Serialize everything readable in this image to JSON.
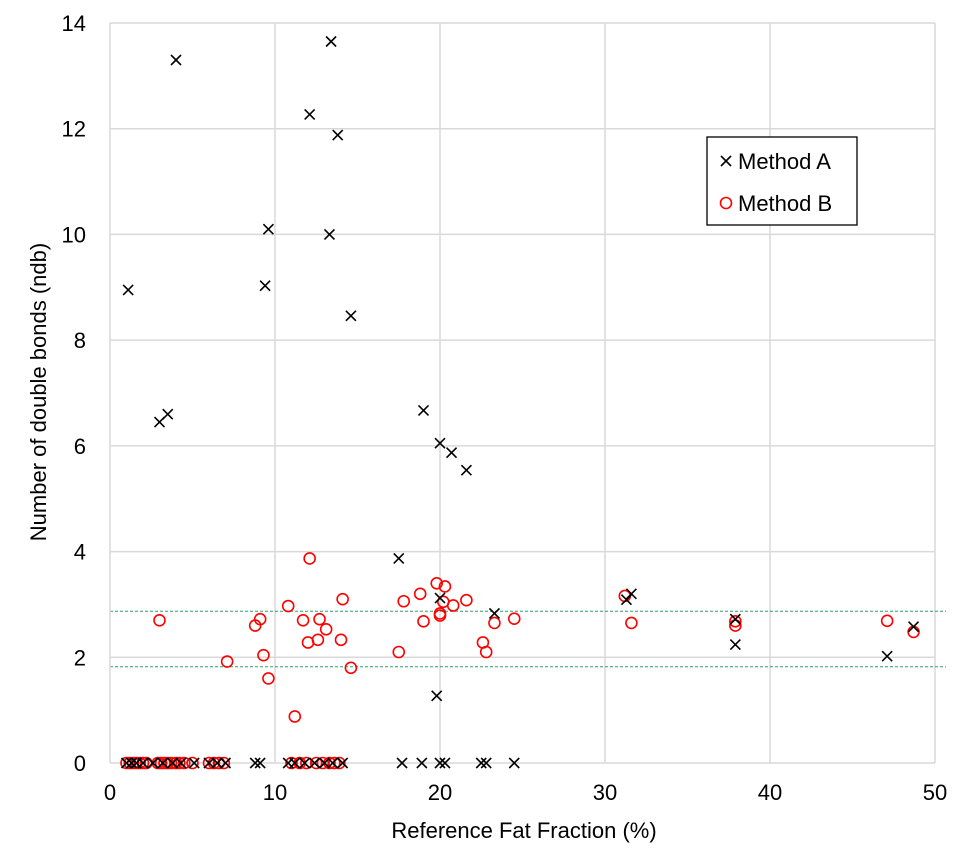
{
  "chart_data": {
    "type": "scatter",
    "xlabel": "Reference Fat Fraction (%)",
    "ylabel": "Number of double bonds (ndb)",
    "xlim": [
      0,
      50
    ],
    "ylim": [
      0,
      14
    ],
    "xticks": [
      0,
      10,
      20,
      30,
      40,
      50
    ],
    "yticks": [
      0,
      2,
      4,
      6,
      8,
      10,
      12,
      14
    ],
    "grid": true,
    "legend_position": "top-right",
    "reference_lines": [
      {
        "y": 2.87,
        "color": "#2e9e6b",
        "style": "dashed"
      },
      {
        "y": 1.82,
        "color": "#2e9e6b",
        "style": "dashed"
      }
    ],
    "series": [
      {
        "name": "Method A",
        "marker": "x",
        "color": "#000000",
        "points": [
          [
            1.1,
            8.95
          ],
          [
            4.0,
            13.3
          ],
          [
            3.0,
            6.45
          ],
          [
            3.5,
            6.6
          ],
          [
            9.4,
            9.03
          ],
          [
            9.6,
            10.1
          ],
          [
            12.1,
            12.27
          ],
          [
            13.4,
            13.65
          ],
          [
            13.3,
            10.0
          ],
          [
            13.8,
            11.88
          ],
          [
            14.6,
            8.46
          ],
          [
            17.5,
            3.87
          ],
          [
            19.0,
            6.67
          ],
          [
            19.8,
            1.27
          ],
          [
            20.0,
            3.12
          ],
          [
            20.0,
            6.05
          ],
          [
            20.7,
            5.87
          ],
          [
            21.6,
            5.54
          ],
          [
            23.3,
            2.83
          ],
          [
            31.3,
            3.09
          ],
          [
            31.6,
            3.2
          ],
          [
            37.9,
            2.24
          ],
          [
            37.9,
            2.72
          ],
          [
            47.1,
            2.02
          ],
          [
            48.7,
            2.58
          ],
          [
            1.0,
            0
          ],
          [
            1.3,
            0
          ],
          [
            1.6,
            0
          ],
          [
            2.0,
            0
          ],
          [
            2.6,
            0
          ],
          [
            3.2,
            0
          ],
          [
            3.8,
            0
          ],
          [
            4.3,
            0
          ],
          [
            5.1,
            0
          ],
          [
            6.0,
            0
          ],
          [
            6.5,
            0
          ],
          [
            7.0,
            0
          ],
          [
            8.8,
            0
          ],
          [
            9.1,
            0
          ],
          [
            10.8,
            0
          ],
          [
            11.2,
            0
          ],
          [
            11.8,
            0
          ],
          [
            12.4,
            0
          ],
          [
            13.0,
            0
          ],
          [
            13.5,
            0
          ],
          [
            14.1,
            0
          ],
          [
            17.7,
            0
          ],
          [
            18.9,
            0
          ],
          [
            20.0,
            0
          ],
          [
            20.3,
            0
          ],
          [
            22.5,
            0
          ],
          [
            22.8,
            0
          ],
          [
            24.5,
            0
          ]
        ]
      },
      {
        "name": "Method B",
        "marker": "o",
        "color": "#ff0000",
        "points": [
          [
            3.0,
            2.7
          ],
          [
            7.1,
            1.92
          ],
          [
            8.8,
            2.6
          ],
          [
            9.1,
            2.72
          ],
          [
            9.3,
            2.04
          ],
          [
            9.6,
            1.6
          ],
          [
            10.8,
            2.97
          ],
          [
            11.2,
            0.88
          ],
          [
            11.7,
            2.7
          ],
          [
            12.0,
            2.28
          ],
          [
            12.1,
            3.87
          ],
          [
            12.6,
            2.33
          ],
          [
            12.7,
            2.72
          ],
          [
            13.1,
            2.53
          ],
          [
            14.0,
            2.33
          ],
          [
            14.1,
            3.1
          ],
          [
            14.6,
            1.8
          ],
          [
            17.5,
            2.1
          ],
          [
            17.8,
            3.06
          ],
          [
            18.8,
            3.2
          ],
          [
            19.0,
            2.68
          ],
          [
            19.8,
            3.4
          ],
          [
            20.0,
            2.79
          ],
          [
            20.0,
            2.83
          ],
          [
            20.2,
            3.05
          ],
          [
            20.3,
            3.34
          ],
          [
            20.8,
            2.98
          ],
          [
            21.6,
            3.08
          ],
          [
            22.6,
            2.28
          ],
          [
            22.8,
            2.1
          ],
          [
            23.3,
            2.65
          ],
          [
            24.5,
            2.73
          ],
          [
            31.2,
            3.16
          ],
          [
            31.6,
            2.65
          ],
          [
            37.9,
            2.6
          ],
          [
            37.9,
            2.68
          ],
          [
            47.1,
            2.69
          ],
          [
            48.7,
            2.48
          ],
          [
            1.0,
            0
          ],
          [
            1.2,
            0
          ],
          [
            1.4,
            0
          ],
          [
            1.6,
            0
          ],
          [
            1.8,
            0
          ],
          [
            2.0,
            0
          ],
          [
            2.2,
            0
          ],
          [
            2.9,
            0
          ],
          [
            3.1,
            0
          ],
          [
            3.3,
            0
          ],
          [
            3.5,
            0
          ],
          [
            3.7,
            0
          ],
          [
            4.0,
            0
          ],
          [
            4.2,
            0
          ],
          [
            4.5,
            0
          ],
          [
            5.0,
            0
          ],
          [
            6.0,
            0
          ],
          [
            6.3,
            0
          ],
          [
            6.6,
            0
          ],
          [
            6.9,
            0
          ],
          [
            11.0,
            0
          ],
          [
            11.5,
            0
          ],
          [
            11.9,
            0
          ],
          [
            12.5,
            0
          ],
          [
            12.9,
            0
          ],
          [
            13.3,
            0
          ],
          [
            13.6,
            0
          ],
          [
            13.9,
            0
          ]
        ]
      }
    ]
  }
}
